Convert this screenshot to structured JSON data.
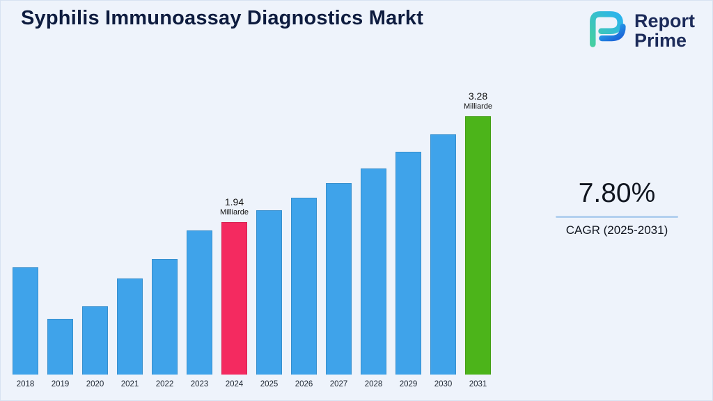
{
  "page": {
    "title": "Syphilis Immunoassay Diagnostics Markt",
    "background": "#eef3fb"
  },
  "logo": {
    "line1": "Report",
    "line2": "Prime",
    "text_color": "#1c2b5a",
    "mark_colors": {
      "teal": "#45cfa2",
      "light_blue": "#2bb3ef",
      "blue": "#1a5fd6"
    }
  },
  "cagr": {
    "value": "7.80%",
    "label": "CAGR (2025-2031)",
    "divider_color": "#b3d0ef"
  },
  "chart_data": {
    "type": "bar",
    "title": "Syphilis Immunoassay Diagnostics Markt",
    "unit": "Milliarde",
    "categories": [
      "2018",
      "2019",
      "2020",
      "2021",
      "2022",
      "2023",
      "2024",
      "2025",
      "2026",
      "2027",
      "2028",
      "2029",
      "2030",
      "2031"
    ],
    "values": [
      1.36,
      0.71,
      0.87,
      1.22,
      1.47,
      1.83,
      1.94,
      2.09,
      2.25,
      2.43,
      2.62,
      2.83,
      3.05,
      3.28
    ],
    "ylim": [
      0,
      3.6
    ],
    "grid": false,
    "legend": false,
    "bar_color": "#3fa3ea",
    "highlights": [
      {
        "category": "2024",
        "color": "#f42a60",
        "value_label": "1.94",
        "unit_label": "Milliarde"
      },
      {
        "category": "2031",
        "color": "#4cb41a",
        "value_label": "3.28",
        "unit_label": "Milliarde"
      }
    ]
  }
}
